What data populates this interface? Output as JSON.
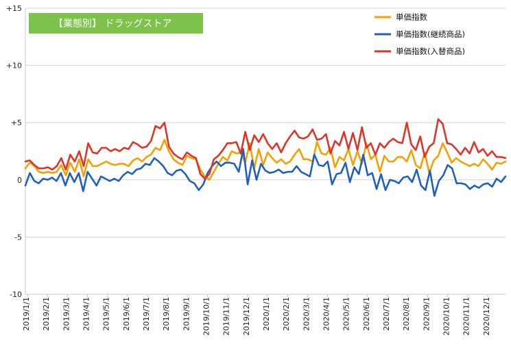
{
  "chart_data": {
    "type": "line",
    "title": "【業態別】 ドラッグストア",
    "title_bg_color": "#7dc24a",
    "ylim": [
      -10,
      15
    ],
    "y_ticks": [
      {
        "value": 15,
        "label": "+15"
      },
      {
        "value": 10,
        "label": "+10"
      },
      {
        "value": 5,
        "label": "+5"
      },
      {
        "value": 0,
        "label": "0"
      },
      {
        "value": -5,
        "label": "-5"
      },
      {
        "value": -10,
        "label": "-10"
      }
    ],
    "grid": true,
    "legend_placement": "top-right",
    "x_period": "2019/1/1 – 2020/12 (weekly)",
    "x_tick_labels": [
      "2019/1/1",
      "2019/2/1",
      "2019/3/1",
      "2019/4/1",
      "2019/5/1",
      "2019/6/1",
      "2019/7/1",
      "2019/8/1",
      "2019/9/1",
      "2019/10/1",
      "2019/11/1",
      "2019/12/1",
      "2020/1/1",
      "2020/2/1",
      "2020/3/1",
      "2020/4/1",
      "2020/5/1",
      "2020/6/1",
      "2020/7/1",
      "2020/8/1",
      "2020/9/1",
      "2020/10/1",
      "2020/11/1",
      "2020/12/1"
    ],
    "series": [
      {
        "name": "単価指数",
        "color": "#f5a000",
        "values": [
          1.0,
          1.5,
          1.2,
          0.7,
          0.6,
          0.7,
          0.6,
          0.7,
          1.3,
          0.4,
          1.5,
          0.7,
          1.8,
          0.3,
          1.8,
          1.2,
          1.2,
          1.4,
          1.6,
          1.4,
          1.3,
          1.4,
          1.4,
          1.2,
          1.7,
          1.9,
          1.6,
          2.0,
          2.2,
          2.8,
          2.6,
          3.5,
          2.5,
          1.8,
          1.5,
          1.3,
          2.1,
          1.9,
          1.8,
          0.9,
          0.3,
          0.0,
          0.7,
          1.4,
          2.0,
          1.7,
          2.5,
          2.3,
          2.4,
          1.5,
          3.2,
          1.0,
          2.7,
          1.3,
          2.4,
          1.9,
          1.5,
          1.8,
          1.4,
          1.6,
          2.2,
          2.7,
          1.8,
          1.8,
          1.6,
          3.3,
          2.3,
          2.2,
          2.8,
          1.1,
          2.0,
          1.7,
          2.7,
          1.3,
          2.5,
          1.4,
          3.2,
          1.8,
          2.2,
          0.7,
          2.1,
          1.6,
          1.6,
          2.0,
          2.0,
          1.6,
          2.6,
          1.3,
          1.0,
          2.4,
          0.6,
          1.7,
          2.1,
          3.2,
          2.4,
          1.5,
          1.9,
          1.6,
          1.4,
          1.2,
          1.4,
          1.2,
          1.8,
          1.4,
          0.9,
          1.5,
          1.4,
          1.6
        ]
      },
      {
        "name": "単価指数(継続商品)",
        "color": "#1f5fc0",
        "values": [
          -0.5,
          0.6,
          -0.1,
          -0.3,
          0.1,
          0.0,
          0.2,
          -0.1,
          0.6,
          -0.5,
          0.6,
          -0.2,
          0.6,
          -1.0,
          0.7,
          0.1,
          -0.5,
          0.3,
          0.1,
          -0.1,
          0.1,
          -0.1,
          0.4,
          0.7,
          0.5,
          0.9,
          1.0,
          1.4,
          1.3,
          1.9,
          1.6,
          1.2,
          0.6,
          0.4,
          0.8,
          0.9,
          0.5,
          -0.1,
          -0.3,
          -0.9,
          -0.4,
          0.6,
          1.2,
          1.6,
          1.2,
          1.5,
          1.5,
          1.4,
          0.7,
          2.7,
          -0.4,
          1.7,
          0.0,
          1.4,
          0.8,
          0.6,
          0.7,
          0.9,
          0.6,
          0.7,
          0.7,
          1.2,
          0.7,
          0.5,
          0.3,
          2.2,
          1.3,
          1.2,
          1.6,
          -0.4,
          0.5,
          0.6,
          1.5,
          -0.2,
          1.1,
          0.5,
          2.2,
          0.4,
          0.6,
          -0.8,
          0.5,
          -0.9,
          0.0,
          -0.1,
          -0.3,
          0.2,
          0.3,
          -0.2,
          0.9,
          -0.5,
          -0.9,
          0.8,
          -1.4,
          -0.1,
          0.4,
          1.3,
          1.0,
          -0.3,
          -0.3,
          -0.4,
          -0.8,
          -0.5,
          -0.7,
          -0.4,
          -0.3,
          -0.6,
          0.1,
          -0.2,
          0.3
        ]
      },
      {
        "name": "単価指数(入替商品)",
        "color": "#e03328",
        "values": [
          1.6,
          1.7,
          1.3,
          1.0,
          1.0,
          1.1,
          0.9,
          1.2,
          1.9,
          0.9,
          2.2,
          1.6,
          2.5,
          1.2,
          3.2,
          2.4,
          2.3,
          2.8,
          2.8,
          2.5,
          2.7,
          2.5,
          2.8,
          2.7,
          3.3,
          3.1,
          2.8,
          2.9,
          3.4,
          4.7,
          4.5,
          5.0,
          2.9,
          2.3,
          2.0,
          1.8,
          2.4,
          2.1,
          1.9,
          0.5,
          0.1,
          0.5,
          1.8,
          2.1,
          2.6,
          3.2,
          3.2,
          3.3,
          2.3,
          4.2,
          2.6,
          3.9,
          3.3,
          4.0,
          3.2,
          2.7,
          3.2,
          2.4,
          3.2,
          3.8,
          4.3,
          3.7,
          3.6,
          3.8,
          4.4,
          3.5,
          3.6,
          4.0,
          2.3,
          3.4,
          3.0,
          4.2,
          2.7,
          4.1,
          2.6,
          4.6,
          2.8,
          3.2,
          2.2,
          3.2,
          2.8,
          3.3,
          3.6,
          3.3,
          3.2,
          5.0,
          3.1,
          2.6,
          3.8,
          2.0,
          2.9,
          3.2,
          5.3,
          4.9,
          3.2,
          3.1,
          2.7,
          2.2,
          2.8,
          2.3,
          3.3,
          2.4,
          2.7,
          2.1,
          2.5,
          2.0,
          2.0,
          1.9
        ]
      }
    ]
  }
}
